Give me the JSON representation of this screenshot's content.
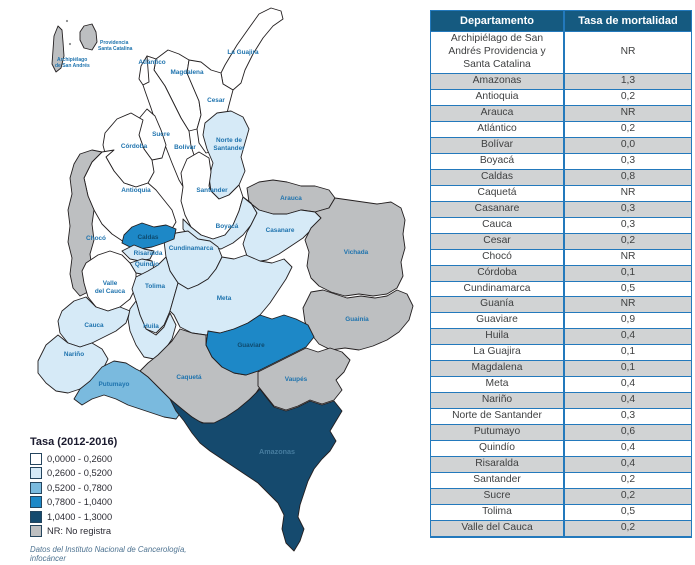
{
  "palette": {
    "range1": "#ffffff",
    "range2": "#d6eaf7",
    "range3": "#7abade",
    "range4": "#1d88c7",
    "range5": "#154a6e",
    "nr": "#bdbfc1",
    "stroke": "#231f20",
    "label_blue": "#1e73ae",
    "label_dark": "#0e4a6e",
    "label_muted": "#467c9f",
    "header_bg": "#155a80",
    "row_alt_bg": "#d1d3d4",
    "table_border": "#2379bc"
  },
  "map": {
    "labels": {
      "prov_1": "Providencia",
      "prov_2": "Santa Catalina",
      "sa_1": "Archipiélago",
      "sa_2": "de San Andrés",
      "la_guajira": "La Guajira",
      "atlantico": "Atlántico",
      "magdalena": "Magdalena",
      "cesar": "Cesar",
      "sucre": "Sucre",
      "bolivar": "Bolívar",
      "cordoba": "Córdoba",
      "norte_1": "Norte de",
      "norte_2": "Santander",
      "antioquia": "Antioquia",
      "santander": "Santander",
      "arauca": "Arauca",
      "choco": "Chocó",
      "boyaca": "Boyacá",
      "casanare": "Casanare",
      "vichada": "Vichada",
      "caldas": "Caldas",
      "cundinamarca": "Cundinamarca",
      "risaralda": "Risaralda",
      "quindio": "Quindio",
      "valle_1": "Valle",
      "valle_2": "del Cauca",
      "tolima": "Tolima",
      "meta": "Meta",
      "guainia": "Guainía",
      "cauca": "Cauca",
      "huila": "Huila",
      "narino": "Nariño",
      "guaviare": "Guaviare",
      "caqueta": "Caquetá",
      "vaupes": "Vaupés",
      "putumayo": "Putumayo",
      "amazonas": "Amazonas"
    }
  },
  "legend": {
    "title": "Tasa (2012-2016)",
    "items": [
      {
        "label": "0,0000 - 0,2600",
        "color_key": "range1"
      },
      {
        "label": "0,2600 - 0,5200",
        "color_key": "range2"
      },
      {
        "label": "0,5200 - 0,7800",
        "color_key": "range3"
      },
      {
        "label": "0,7800 - 1,0400",
        "color_key": "range4"
      },
      {
        "label": "1,0400 - 1,3000",
        "color_key": "range5"
      },
      {
        "label": "NR: No registra",
        "color_key": "nr"
      }
    ],
    "source": "Datos del Instituto Nacional de Cancerología, infocáncer"
  },
  "table": {
    "headers": [
      "Departamento",
      "Tasa de mortalidad"
    ],
    "rows": [
      [
        "Archipiélago de San Andrés Providencia y Santa Catalina",
        "NR"
      ],
      [
        "Amazonas",
        "1,3"
      ],
      [
        "Antioquia",
        "0,2"
      ],
      [
        "Arauca",
        "NR"
      ],
      [
        "Atlántico",
        "0,2"
      ],
      [
        "Bolívar",
        "0,0"
      ],
      [
        "Boyacá",
        "0,3"
      ],
      [
        "Caldas",
        "0,8"
      ],
      [
        "Caquetá",
        "NR"
      ],
      [
        "Casanare",
        "0,3"
      ],
      [
        "Cauca",
        "0,3"
      ],
      [
        "Cesar",
        "0,2"
      ],
      [
        "Chocó",
        "NR"
      ],
      [
        "Córdoba",
        "0,1"
      ],
      [
        "Cundinamarca",
        "0,5"
      ],
      [
        "Guanía",
        "NR"
      ],
      [
        "Guaviare",
        "0,9"
      ],
      [
        "Huila",
        "0,4"
      ],
      [
        "La Guajira",
        "0,1"
      ],
      [
        "Magdalena",
        "0,1"
      ],
      [
        "Meta",
        "0,4"
      ],
      [
        "Nariño",
        "0,4"
      ],
      [
        "Norte de Santander",
        "0,3"
      ],
      [
        "Putumayo",
        "0,6"
      ],
      [
        "Quindío",
        "0,4"
      ],
      [
        "Risaralda",
        "0,4"
      ],
      [
        "Santander",
        "0,2"
      ],
      [
        "Sucre",
        "0,2"
      ],
      [
        "Tolima",
        "0,5"
      ],
      [
        "Valle del Cauca",
        "0,2"
      ]
    ]
  },
  "chart_data": {
    "type": "heatmap",
    "subtype": "choropleth-map-of-colombia",
    "title": "Tasa (2012-2016)",
    "categories": [
      "Archipiélago de San Andrés Providencia y Santa Catalina",
      "Amazonas",
      "Antioquia",
      "Arauca",
      "Atlántico",
      "Bolívar",
      "Boyacá",
      "Caldas",
      "Caquetá",
      "Casanare",
      "Cauca",
      "Cesar",
      "Chocó",
      "Córdoba",
      "Cundinamarca",
      "Guanía",
      "Guaviare",
      "Huila",
      "La Guajira",
      "Magdalena",
      "Meta",
      "Nariño",
      "Norte de Santander",
      "Putumayo",
      "Quindío",
      "Risaralda",
      "Santander",
      "Sucre",
      "Tolima",
      "Valle del Cauca"
    ],
    "series": [
      {
        "name": "Tasa de mortalidad",
        "values": [
          null,
          1.3,
          0.2,
          null,
          0.2,
          0.0,
          0.3,
          0.8,
          null,
          0.3,
          0.3,
          0.2,
          null,
          0.1,
          0.5,
          null,
          0.9,
          0.4,
          0.1,
          0.1,
          0.4,
          0.4,
          0.3,
          0.6,
          0.4,
          0.4,
          0.2,
          0.2,
          0.5,
          0.2
        ]
      }
    ],
    "null_meaning": "NR: No registra",
    "bins": [
      "0,0000 - 0,2600",
      "0,2600 - 0,5200",
      "0,5200 - 0,7800",
      "0,7800 - 1,0400",
      "1,0400 - 1,3000",
      "NR: No registra"
    ],
    "bin_colors": [
      "#ffffff",
      "#d6eaf7",
      "#7abade",
      "#1d88c7",
      "#154a6e",
      "#bdbfc1"
    ],
    "legend_position": "bottom-left",
    "source": "Datos del Instituto Nacional de Cancerología, infocáncer"
  }
}
